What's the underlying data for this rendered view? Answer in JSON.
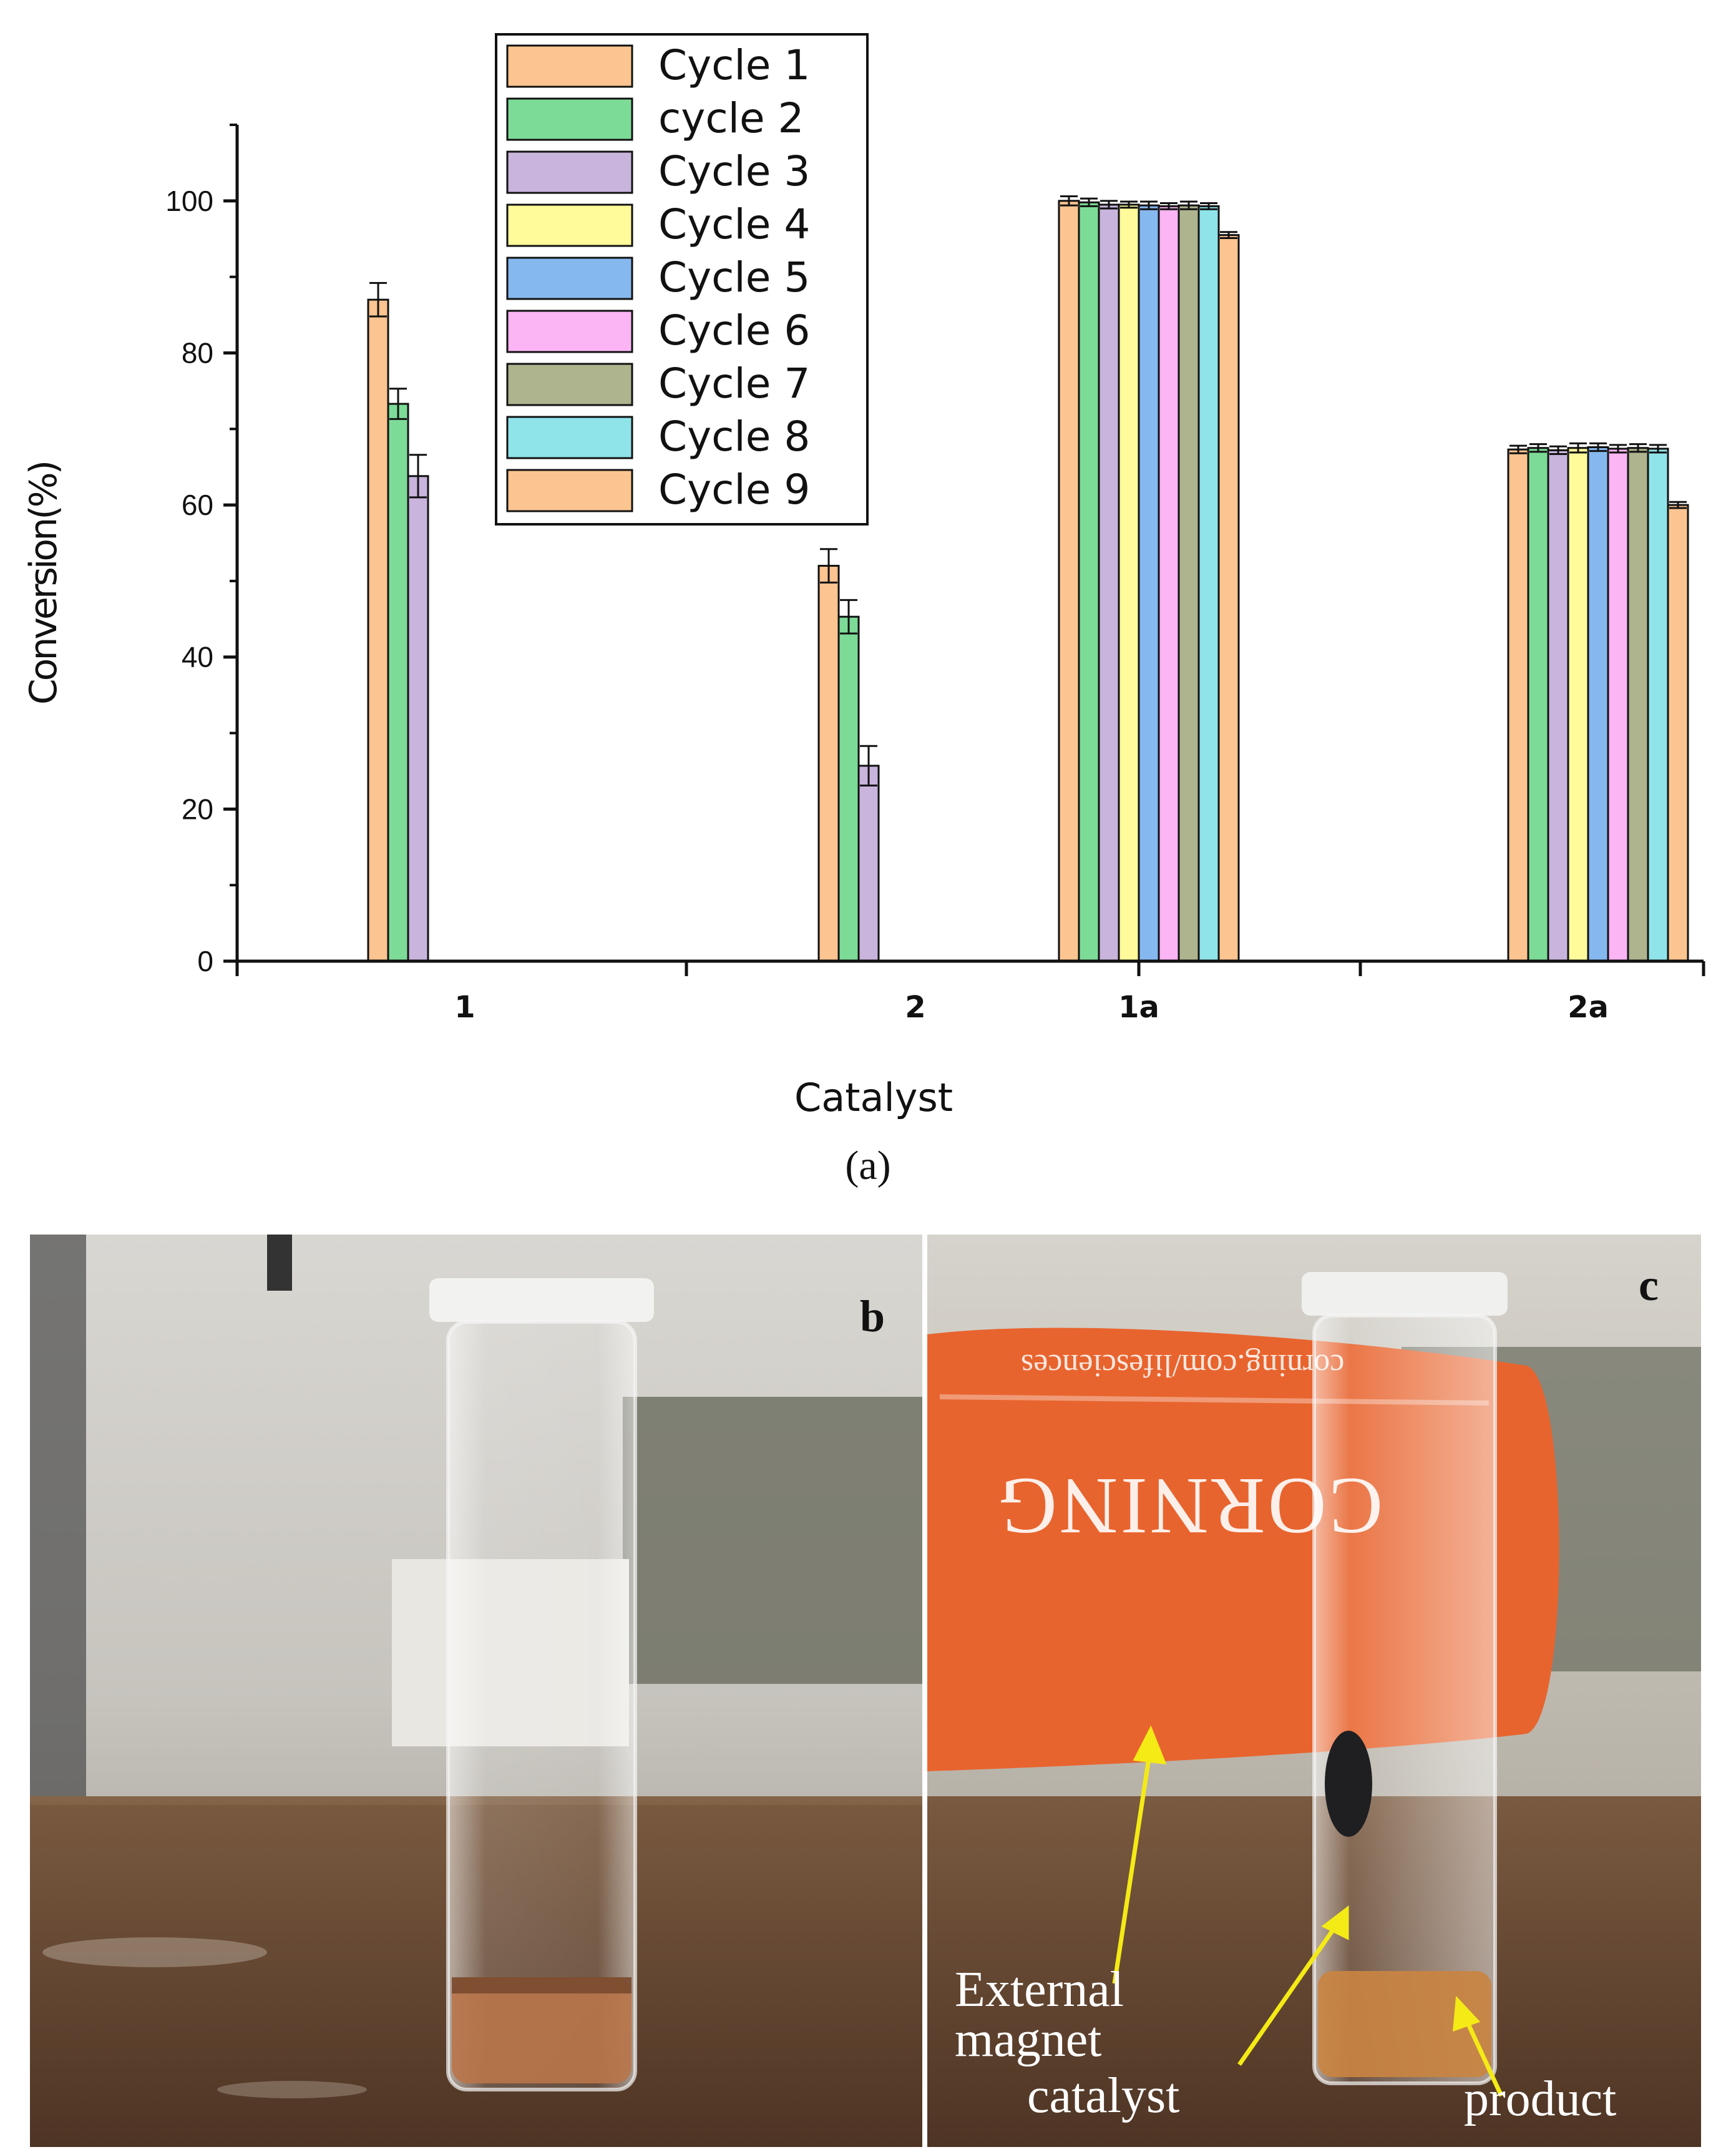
{
  "chart_data": {
    "type": "bar",
    "title": "",
    "xlabel": "Catalyst",
    "ylabel": "Conversion(%)",
    "ylim": [
      0,
      110
    ],
    "yticks": [
      0,
      20,
      40,
      60,
      80,
      100
    ],
    "categories": [
      "1",
      "2",
      "1a",
      "2a"
    ],
    "legend_position": "top-center",
    "series": [
      {
        "name": "Cycle 1",
        "color": "#fcc490",
        "values": [
          87,
          52,
          100,
          67.3
        ],
        "errors": [
          2.2,
          2.2,
          0.6,
          0.5
        ]
      },
      {
        "name": "cycle 2",
        "color": "#7ddb98",
        "values": [
          73.3,
          45.3,
          99.8,
          67.5
        ],
        "errors": [
          2.0,
          2.2,
          0.5,
          0.5
        ]
      },
      {
        "name": "Cycle 3",
        "color": "#c8b4dc",
        "values": [
          63.8,
          25.7,
          99.5,
          67.2
        ],
        "errors": [
          2.8,
          2.6,
          0.5,
          0.5
        ]
      },
      {
        "name": "Cycle 4",
        "color": "#fffa9a",
        "values": [
          null,
          null,
          99.5,
          67.5
        ],
        "errors": [
          0,
          0,
          0.4,
          0.6
        ]
      },
      {
        "name": "Cycle 5",
        "color": "#86b8f0",
        "values": [
          null,
          null,
          99.4,
          67.6
        ],
        "errors": [
          0,
          0,
          0.5,
          0.5
        ]
      },
      {
        "name": "Cycle 6",
        "color": "#fbb4f4",
        "values": [
          null,
          null,
          99.3,
          67.4
        ],
        "errors": [
          0,
          0,
          0.4,
          0.5
        ]
      },
      {
        "name": "Cycle 7",
        "color": "#adb48e",
        "values": [
          null,
          null,
          99.4,
          67.5
        ],
        "errors": [
          0,
          0,
          0.5,
          0.5
        ]
      },
      {
        "name": "Cycle 8",
        "color": "#8fe4ea",
        "values": [
          null,
          null,
          99.3,
          67.4
        ],
        "errors": [
          0,
          0,
          0.4,
          0.5
        ]
      },
      {
        "name": "Cycle 9",
        "color": "#fcc490",
        "values": [
          null,
          null,
          95.5,
          60.0
        ],
        "errors": [
          0,
          0,
          0.4,
          0.4
        ]
      }
    ]
  },
  "panels": {
    "a_caption": "(a)",
    "b_label": "b",
    "c_label": "c",
    "magnet_text": "CORNING",
    "magnet_url": "corning.com/lifesciences",
    "annotations": {
      "external_magnet_1": "External",
      "external_magnet_2": "magnet",
      "catalyst": "catalyst",
      "product": "product"
    },
    "colors": {
      "arrow": "#f4ea16",
      "magnet": "#e8642e",
      "liquid": "#c98442",
      "table": "#6b4a34"
    }
  }
}
